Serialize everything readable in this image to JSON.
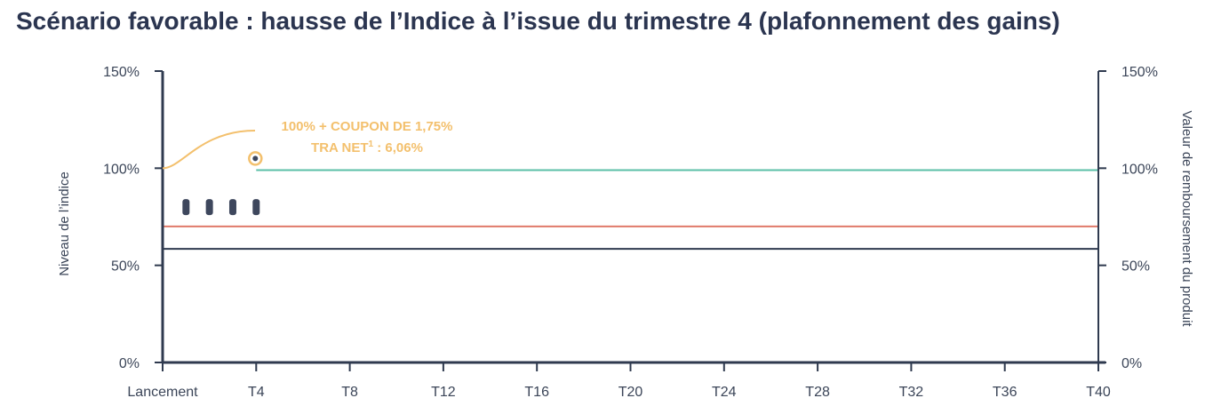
{
  "title": "Scénario favorable : hausse de l’Indice à l’issue du trimestre 4 (plafonnement des gains)",
  "colors": {
    "axis": "#2f3a4f",
    "index_level": "#5bbfa7",
    "barrier_red": "#e07a6a",
    "barrier_dark": "#2f3a4f",
    "annotation": "#f3c06d",
    "observation": "#3e475d"
  },
  "chart_data": {
    "type": "line",
    "xlabel": "",
    "ylabel_left": "Niveau de l’indice",
    "ylabel_right": "Valeur de remboursement du produit",
    "ylim": [
      0,
      150
    ],
    "x_ticks": [
      "Lancement",
      "T4",
      "T8",
      "T12",
      "T16",
      "T20",
      "T24",
      "T28",
      "T32",
      "T36",
      "T40"
    ],
    "x_tick_values": [
      0,
      4,
      8,
      12,
      16,
      20,
      24,
      28,
      32,
      36,
      40
    ],
    "y_ticks_left": [
      "0%",
      "50%",
      "100%",
      "150%"
    ],
    "y_ticks_right": [
      "0%",
      "50%",
      "100%",
      "150%"
    ],
    "y_tick_values": [
      0,
      50,
      100,
      150
    ],
    "series": [
      {
        "role": "repayment_level",
        "color": "#5bbfa7",
        "x": [
          4,
          40
        ],
        "y": [
          99,
          99
        ]
      },
      {
        "role": "barrier_upper",
        "color": "#e07a6a",
        "x": [
          0,
          40
        ],
        "y": [
          70,
          70
        ]
      },
      {
        "role": "barrier_lower",
        "color": "#2f3a4f",
        "x": [
          0,
          40
        ],
        "y": [
          58.5,
          58.5
        ]
      }
    ],
    "observation_markers": {
      "x": [
        1,
        2,
        3,
        4
      ],
      "y": 80
    },
    "redemption_point": {
      "x": 4,
      "y": 105
    },
    "annotation": {
      "line1": "100% + COUPON DE 1,75%",
      "line2_prefix": "TRA NET",
      "line2_sup": "1",
      "line2_suffix": " : 6,06%",
      "anchor_y": 100
    }
  }
}
